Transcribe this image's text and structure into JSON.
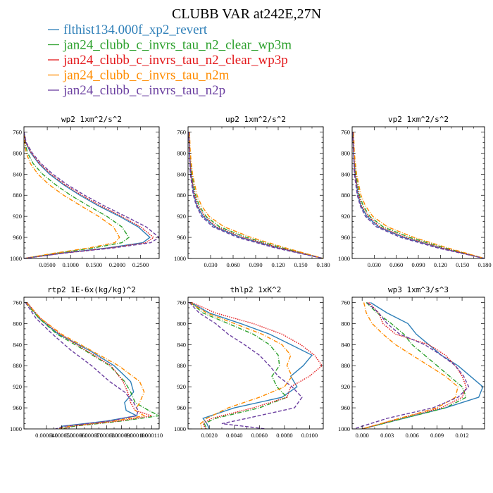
{
  "chart_data": {
    "type": "line",
    "title": "CLUBB VAR at242E,27N",
    "series": [
      {
        "name": "flthist134.000f_xp2_revert",
        "color": "#2e7fb8",
        "dash": "solid"
      },
      {
        "name": "jan24_clubb_c_invrs_tau_n2_clear_wp3m",
        "color": "#2ca02c",
        "dash": "dashdot"
      },
      {
        "name": "jan24_clubb_c_invrs_tau_n2_clear_wp3p",
        "color": "#e3191c",
        "dash": "dotted"
      },
      {
        "name": "jan24_clubb_c_invrs_tau_n2m",
        "color": "#ff8c00",
        "dash": "dashdot"
      },
      {
        "name": "jan24_clubb_c_invrs_tau_n2p",
        "color": "#6b3fa0",
        "dash": "dashed"
      }
    ],
    "panels": [
      {
        "title": "wp2  1xm^2/s^2",
        "xlim": [
          0,
          0.29
        ],
        "ylim": [
          1000,
          750
        ],
        "xticks": [
          "0.0500",
          "0.1000",
          "0.1500",
          "0.2000",
          "0.2500"
        ],
        "xtick_values": [
          0.05,
          0.1,
          0.15,
          0.2,
          0.25
        ],
        "yticks": [
          760,
          800,
          840,
          880,
          920,
          960,
          1000
        ],
        "y": [
          760,
          780,
          800,
          820,
          840,
          860,
          880,
          900,
          920,
          940,
          960,
          970,
          980,
          990,
          1000
        ],
        "lines": [
          [
            0.0,
            0.004,
            0.015,
            0.032,
            0.055,
            0.085,
            0.12,
            0.16,
            0.205,
            0.245,
            0.27,
            0.255,
            0.18,
            0.08,
            0.0
          ],
          [
            0.0,
            0.002,
            0.008,
            0.02,
            0.04,
            0.068,
            0.1,
            0.138,
            0.178,
            0.21,
            0.225,
            0.21,
            0.15,
            0.07,
            0.0
          ],
          [
            0.0,
            0.004,
            0.016,
            0.034,
            0.058,
            0.088,
            0.124,
            0.164,
            0.21,
            0.25,
            0.278,
            0.262,
            0.185,
            0.082,
            0.0
          ],
          [
            0.0,
            0.001,
            0.005,
            0.014,
            0.03,
            0.054,
            0.085,
            0.122,
            0.16,
            0.192,
            0.205,
            0.195,
            0.14,
            0.065,
            0.0
          ],
          [
            0.0,
            0.005,
            0.018,
            0.037,
            0.062,
            0.093,
            0.13,
            0.172,
            0.218,
            0.262,
            0.29,
            0.272,
            0.192,
            0.085,
            0.0
          ]
        ]
      },
      {
        "title": "up2  1xm^2/s^2",
        "xlim": [
          0,
          0.18
        ],
        "ylim": [
          1000,
          750
        ],
        "xticks": [
          "0.030",
          "0.060",
          "0.090",
          "0.120",
          "0.150",
          "0.180"
        ],
        "xtick_values": [
          0.03,
          0.06,
          0.09,
          0.12,
          0.15,
          0.18
        ],
        "yticks": [
          760,
          800,
          840,
          880,
          920,
          960,
          1000
        ],
        "y": [
          760,
          800,
          840,
          880,
          900,
          920,
          940,
          960,
          980,
          1000
        ],
        "lines": [
          [
            0.001,
            0.002,
            0.004,
            0.008,
            0.012,
            0.02,
            0.036,
            0.07,
            0.12,
            0.18
          ],
          [
            0.001,
            0.003,
            0.005,
            0.01,
            0.015,
            0.024,
            0.042,
            0.078,
            0.126,
            0.18
          ],
          [
            0.001,
            0.002,
            0.004,
            0.009,
            0.013,
            0.022,
            0.038,
            0.073,
            0.122,
            0.18
          ],
          [
            0.002,
            0.003,
            0.006,
            0.012,
            0.018,
            0.028,
            0.048,
            0.084,
            0.13,
            0.18
          ],
          [
            0.001,
            0.002,
            0.003,
            0.007,
            0.011,
            0.018,
            0.033,
            0.066,
            0.116,
            0.18
          ]
        ]
      },
      {
        "title": "vp2  1xm^2/s^2",
        "xlim": [
          0,
          0.18
        ],
        "ylim": [
          1000,
          750
        ],
        "xticks": [
          "0.030",
          "0.060",
          "0.090",
          "0.120",
          "0.150",
          "0.180"
        ],
        "xtick_values": [
          0.03,
          0.06,
          0.09,
          0.12,
          0.15,
          0.18
        ],
        "yticks": [
          760,
          800,
          840,
          880,
          920,
          960,
          1000
        ],
        "y": [
          760,
          800,
          840,
          880,
          900,
          920,
          940,
          960,
          980,
          1000
        ],
        "lines": [
          [
            0.001,
            0.002,
            0.004,
            0.008,
            0.012,
            0.02,
            0.036,
            0.07,
            0.12,
            0.18
          ],
          [
            0.001,
            0.003,
            0.005,
            0.01,
            0.015,
            0.024,
            0.042,
            0.078,
            0.126,
            0.18
          ],
          [
            0.001,
            0.002,
            0.004,
            0.009,
            0.013,
            0.022,
            0.038,
            0.073,
            0.122,
            0.18
          ],
          [
            0.002,
            0.003,
            0.006,
            0.012,
            0.018,
            0.028,
            0.048,
            0.084,
            0.13,
            0.18
          ],
          [
            0.001,
            0.002,
            0.003,
            0.007,
            0.011,
            0.018,
            0.033,
            0.066,
            0.116,
            0.18
          ]
        ]
      },
      {
        "title": "rtp2  1E-6x(kg/kg)^2",
        "xlim": [
          2.5e-05,
          0.000115
        ],
        "ylim": [
          1000,
          750
        ],
        "xticks": [
          "0.000040",
          "0.000050",
          "0.000060",
          "0.000070",
          "0.000080",
          "0.000090",
          "0.000100",
          "0.000110"
        ],
        "xtick_values": [
          4e-05,
          5e-05,
          6e-05,
          7e-05,
          8e-05,
          9e-05,
          0.0001,
          0.00011
        ],
        "yticks": [
          760,
          800,
          840,
          880,
          920,
          960,
          1000
        ],
        "y": [
          760,
          790,
          820,
          850,
          880,
          910,
          930,
          950,
          965,
          975,
          985,
          995,
          1000
        ],
        "lines": [
          [
            2.7e-05,
            3.5e-05,
            4.8e-05,
            6.8e-05,
            8.5e-05,
            9.6e-05,
            9.8e-05,
            9.2e-05,
            9.3e-05,
            0.0001,
            8e-05,
            5e-05,
            5e-05
          ],
          [
            2.6e-05,
            3.5e-05,
            4.7e-05,
            6.5e-05,
            8.2e-05,
            9.2e-05,
            9.6e-05,
            9.9e-05,
            0.000108,
            0.000115,
            9e-05,
            5.8e-05,
            5e-05
          ],
          [
            2.7e-05,
            3.6e-05,
            4.9e-05,
            6.6e-05,
            8.3e-05,
            9.1e-05,
            9.4e-05,
            9.6e-05,
            9.9e-05,
            0.00011,
            8.8e-05,
            5.6e-05,
            5.2e-05
          ],
          [
            2.65e-05,
            3.6e-05,
            5e-05,
            6.9e-05,
            8.8e-05,
            0.000102,
            0.000105,
            0.000102,
            9.9e-05,
            0.000105,
            8.5e-05,
            5.4e-05,
            4.8e-05
          ],
          [
            2.6e-05,
            3.3e-05,
            4.4e-05,
            5.6e-05,
            7e-05,
            8.2e-05,
            9.2e-05,
            9.8e-05,
            0.000101,
            0.0001,
            8.2e-05,
            5.2e-05,
            4.6e-05
          ]
        ]
      },
      {
        "title": "thlp2  1xK^2",
        "xlim": [
          0.0003,
          0.0111
        ],
        "ylim": [
          1000,
          750
        ],
        "xticks": [
          "0.0020",
          "0.0040",
          "0.0060",
          "0.0080",
          "0.0100"
        ],
        "xtick_values": [
          0.002,
          0.004,
          0.006,
          0.008,
          0.01
        ],
        "yticks": [
          760,
          800,
          840,
          880,
          920,
          960,
          1000
        ],
        "y": [
          760,
          780,
          800,
          820,
          840,
          860,
          880,
          900,
          920,
          940,
          960,
          980,
          990,
          1000
        ],
        "lines": [
          [
            0.0005,
            0.002,
            0.0045,
            0.0068,
            0.0085,
            0.0102,
            0.0095,
            0.0085,
            0.009,
            0.0078,
            0.004,
            0.0015,
            0.0018,
            0.002
          ],
          [
            0.0005,
            0.0015,
            0.0035,
            0.0055,
            0.0068,
            0.0075,
            0.0076,
            0.007,
            0.0074,
            0.0082,
            0.006,
            0.0025,
            0.0016,
            0.0018
          ],
          [
            0.0006,
            0.0025,
            0.0055,
            0.0078,
            0.0093,
            0.0104,
            0.011,
            0.01,
            0.0085,
            0.0082,
            0.0055,
            0.0022,
            0.0015,
            0.0017
          ],
          [
            0.0004,
            0.0018,
            0.004,
            0.0062,
            0.0078,
            0.0085,
            0.0082,
            0.0086,
            0.008,
            0.006,
            0.0035,
            0.0018,
            0.0013,
            0.0014
          ],
          [
            0.0004,
            0.0012,
            0.0025,
            0.0035,
            0.0048,
            0.006,
            0.0068,
            0.0075,
            0.0086,
            0.0094,
            0.0088,
            0.005,
            0.003,
            0.0065
          ]
        ]
      },
      {
        "title": "wp3  1xm^3/s^3",
        "xlim": [
          -0.0012,
          0.0147
        ],
        "ylim": [
          1000,
          750
        ],
        "xticks": [
          "0.000",
          "0.003",
          "0.006",
          "0.009",
          "0.012"
        ],
        "xtick_values": [
          0.0,
          0.003,
          0.006,
          0.009,
          0.012
        ],
        "yticks": [
          760,
          800,
          840,
          880,
          920,
          960,
          1000
        ],
        "y": [
          760,
          780,
          800,
          820,
          840,
          860,
          880,
          900,
          920,
          940,
          960,
          980,
          1000
        ],
        "lines": [
          [
            0.001,
            0.003,
            0.0055,
            0.0065,
            0.008,
            0.0095,
            0.0115,
            0.013,
            0.0145,
            0.014,
            0.01,
            0.005,
            0.0
          ],
          [
            0.0005,
            0.0018,
            0.0035,
            0.005,
            0.006,
            0.0075,
            0.009,
            0.0105,
            0.012,
            0.0125,
            0.01,
            0.005,
            0.0
          ],
          [
            0.0008,
            0.002,
            0.0025,
            0.004,
            0.008,
            0.01,
            0.0112,
            0.012,
            0.0125,
            0.012,
            0.0095,
            0.0045,
            0.0
          ],
          [
            0.0002,
            0.0005,
            0.0012,
            0.0025,
            0.004,
            0.006,
            0.008,
            0.01,
            0.0115,
            0.0112,
            0.009,
            0.0045,
            0.0
          ],
          [
            0.0006,
            0.002,
            0.003,
            0.0045,
            0.0075,
            0.0095,
            0.0112,
            0.0122,
            0.0128,
            0.0115,
            0.0085,
            0.003,
            -0.001
          ]
        ]
      }
    ]
  }
}
